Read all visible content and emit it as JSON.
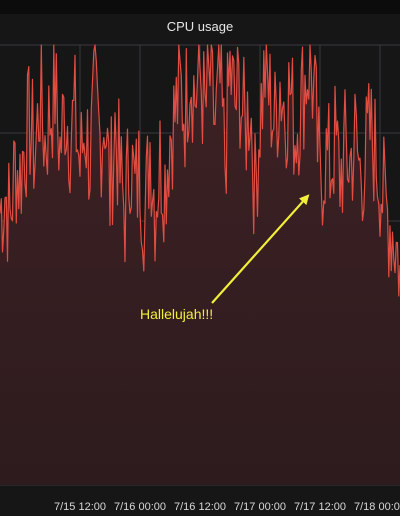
{
  "panel": {
    "title": "CPU usage"
  },
  "chart_data": {
    "type": "area",
    "title": "CPU usage",
    "xlabel": "",
    "ylabel": "",
    "x_unit": "datetime",
    "xlim": [
      "7/14 20:00",
      "7/18 04:00"
    ],
    "ylim": [
      0,
      100
    ],
    "tick_labels": [
      "7/15 12:00",
      "7/16 00:00",
      "7/16 12:00",
      "7/17 00:00",
      "7/17 12:00",
      "7/18 00:00"
    ],
    "grid": true,
    "colors": {
      "line": "#e24d42",
      "fill": "#3a1e21",
      "background": "#161617",
      "grid": "#3a3a3c",
      "annotation": "#f2ef3a"
    },
    "series": [
      {
        "values": [
          [
            "7/14 20:00",
            62
          ],
          [
            "7/14 21:00",
            67
          ],
          [
            "7/14 22:00",
            60
          ],
          [
            "7/14 23:00",
            73
          ],
          [
            "7/15 00:00",
            70
          ],
          [
            "7/15 01:00",
            78
          ],
          [
            "7/15 02:00",
            82
          ],
          [
            "7/15 03:00",
            75
          ],
          [
            "7/15 04:00",
            88
          ],
          [
            "7/15 05:00",
            78
          ],
          [
            "7/15 06:00",
            84
          ],
          [
            "7/15 07:00",
            90
          ],
          [
            "7/15 08:00",
            76
          ],
          [
            "7/15 09:00",
            86
          ],
          [
            "7/15 10:00",
            80
          ],
          [
            "7/15 11:00",
            84
          ],
          [
            "7/15 12:00",
            72
          ],
          [
            "7/15 13:00",
            82
          ],
          [
            "7/15 14:00",
            74
          ],
          [
            "7/15 15:00",
            88
          ],
          [
            "7/15 16:00",
            78
          ],
          [
            "7/15 17:00",
            85
          ],
          [
            "7/15 18:00",
            66
          ],
          [
            "7/15 19:00",
            82
          ],
          [
            "7/15 20:00",
            70
          ],
          [
            "7/15 21:00",
            62
          ],
          [
            "7/15 22:00",
            76
          ],
          [
            "7/15 23:00",
            66
          ],
          [
            "7/16 00:00",
            72
          ],
          [
            "7/16 01:00",
            60
          ],
          [
            "7/16 02:00",
            78
          ],
          [
            "7/16 03:00",
            64
          ],
          [
            "7/16 04:00",
            74
          ],
          [
            "7/16 05:00",
            69
          ],
          [
            "7/16 06:00",
            80
          ],
          [
            "7/16 07:00",
            84
          ],
          [
            "7/16 08:00",
            90
          ],
          [
            "7/16 09:00",
            85
          ],
          [
            "7/16 10:00",
            96
          ],
          [
            "7/16 11:00",
            88
          ],
          [
            "7/16 12:00",
            94
          ],
          [
            "7/16 13:00",
            84
          ],
          [
            "7/16 14:00",
            92
          ],
          [
            "7/16 15:00",
            82
          ],
          [
            "7/16 16:00",
            90
          ],
          [
            "7/16 17:00",
            74
          ],
          [
            "7/16 18:00",
            94
          ],
          [
            "7/16 19:00",
            86
          ],
          [
            "7/16 20:00",
            90
          ],
          [
            "7/16 21:00",
            80
          ],
          [
            "7/16 22:00",
            88
          ],
          [
            "7/16 23:00",
            66
          ],
          [
            "7/17 00:00",
            84
          ],
          [
            "7/17 01:00",
            94
          ],
          [
            "7/17 02:00",
            88
          ],
          [
            "7/17 03:00",
            82
          ],
          [
            "7/17 04:00",
            92
          ],
          [
            "7/17 05:00",
            85
          ],
          [
            "7/17 06:00",
            90
          ],
          [
            "7/17 07:00",
            80
          ],
          [
            "7/17 08:00",
            86
          ],
          [
            "7/17 09:00",
            92
          ],
          [
            "7/17 10:00",
            97
          ],
          [
            "7/17 11:00",
            86
          ],
          [
            "7/17 12:00",
            68
          ],
          [
            "7/17 13:00",
            75
          ],
          [
            "7/17 14:00",
            72
          ],
          [
            "7/17 15:00",
            78
          ],
          [
            "7/17 16:00",
            70
          ],
          [
            "7/17 17:00",
            76
          ],
          [
            "7/17 18:00",
            73
          ],
          [
            "7/17 19:00",
            79
          ],
          [
            "7/17 20:00",
            71
          ],
          [
            "7/17 21:00",
            74
          ],
          [
            "7/17 22:00",
            80
          ],
          [
            "7/17 23:00",
            76
          ],
          [
            "7/18 00:00",
            70
          ],
          [
            "7/18 01:00",
            63
          ],
          [
            "7/18 02:00",
            60
          ],
          [
            "7/18 03:00",
            56
          ],
          [
            "7/18 04:00",
            50
          ]
        ]
      }
    ],
    "annotations": [
      {
        "text": "Hallelujah!!!",
        "target": [
          "7/17 12:00",
          68
        ]
      }
    ]
  }
}
